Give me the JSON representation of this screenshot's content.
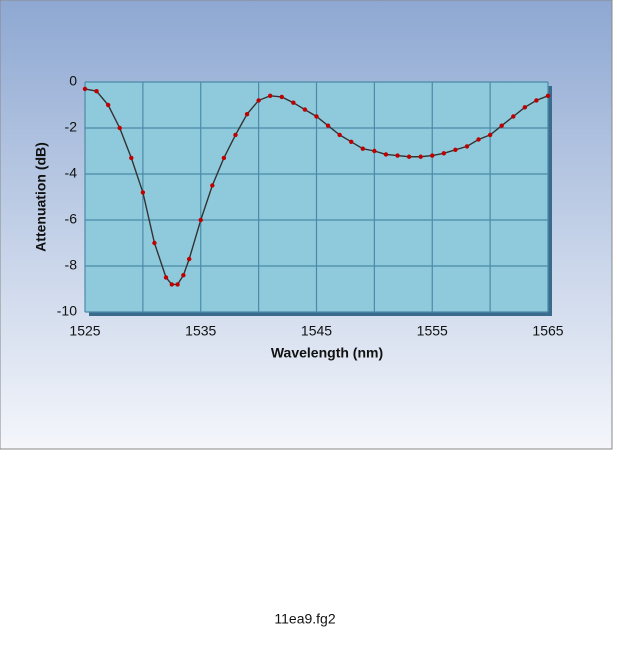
{
  "chart_data": {
    "type": "line",
    "x_label": "Wavelength (nm)",
    "y_label": "Attenuation (dB)",
    "x": [
      1525,
      1526,
      1527,
      1528,
      1529,
      1530,
      1531,
      1532,
      1532.5,
      1533,
      1533.5,
      1534,
      1535,
      1536,
      1537,
      1538,
      1539,
      1540,
      1541,
      1542,
      1543,
      1544,
      1545,
      1546,
      1547,
      1548,
      1549,
      1550,
      1551,
      1552,
      1553,
      1554,
      1555,
      1556,
      1557,
      1558,
      1559,
      1560,
      1561,
      1562,
      1563,
      1564,
      1565
    ],
    "series": [
      {
        "name": "Attenuation",
        "color": "#333333",
        "marker_color": "#c00000",
        "values": [
          -0.3,
          -0.4,
          -1.0,
          -2.0,
          -3.3,
          -4.8,
          -7.0,
          -8.5,
          -8.8,
          -8.8,
          -8.4,
          -7.7,
          -6.0,
          -4.5,
          -3.3,
          -2.3,
          -1.4,
          -0.8,
          -0.6,
          -0.65,
          -0.9,
          -1.2,
          -1.5,
          -1.9,
          -2.3,
          -2.6,
          -2.9,
          -3.0,
          -3.15,
          -3.2,
          -3.25,
          -3.25,
          -3.2,
          -3.1,
          -2.95,
          -2.8,
          -2.5,
          -2.3,
          -1.9,
          -1.5,
          -1.1,
          -0.8,
          -0.6
        ]
      }
    ],
    "xlim": [
      1525,
      1565
    ],
    "xticks": [
      1525,
      1535,
      1545,
      1555,
      1565
    ],
    "xminor": [
      1530,
      1540,
      1550,
      1560
    ],
    "ylim": [
      -10,
      0
    ],
    "yticks": [
      0,
      -2,
      -4,
      -6,
      -8,
      -10
    ],
    "grid": true,
    "caption": "11ea9.fg2"
  }
}
